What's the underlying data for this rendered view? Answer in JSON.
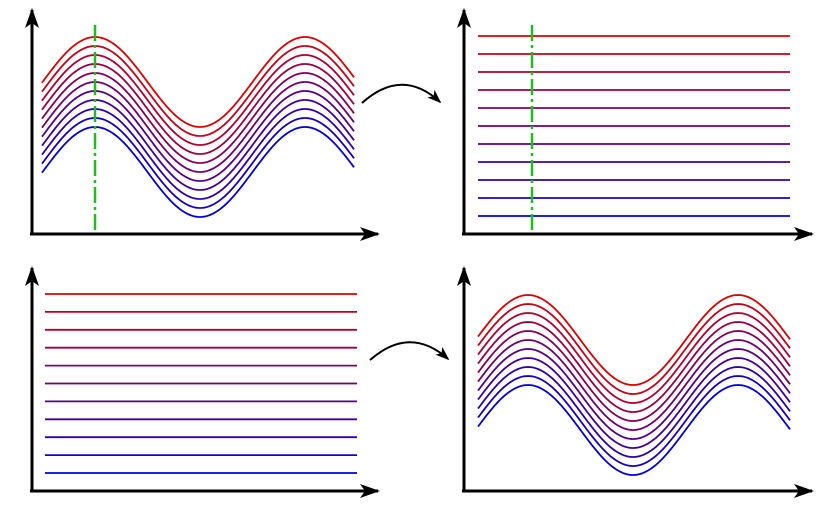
{
  "diagram": {
    "description_visible_text": "",
    "panels": [
      {
        "id": "top-left",
        "content": "wavy-lines",
        "has_marker": true
      },
      {
        "id": "top-right",
        "content": "flat-lines",
        "has_marker": true
      },
      {
        "id": "bottom-left",
        "content": "flat-lines",
        "has_marker": false
      },
      {
        "id": "bottom-right",
        "content": "wavy-lines",
        "has_marker": false
      }
    ],
    "line_count": 11,
    "colors": {
      "line_top": "#dd0000",
      "line_bottom": "#0000dd",
      "axis": "#000000",
      "marker": "#22bb22",
      "transform_arrow": "#000000"
    }
  }
}
